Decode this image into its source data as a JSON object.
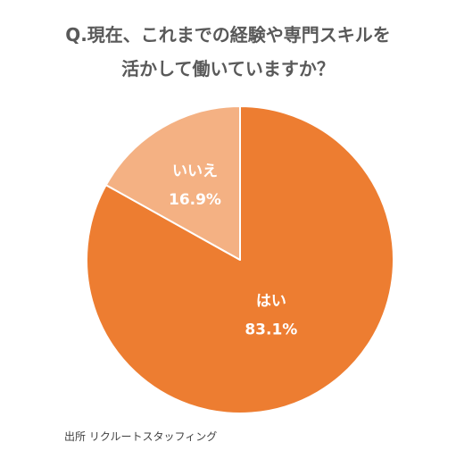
{
  "chart_data": {
    "type": "pie",
    "title_lines": [
      "Q.現在、これまでの経験や専門スキルを",
      "活かして働いていますか？"
    ],
    "slices": [
      {
        "label": "はい",
        "value": 83.1,
        "value_label": "83.1%",
        "color": "#ED7D31"
      },
      {
        "label": "いいえ",
        "value": 16.9,
        "value_label": "16.9%",
        "color": "#F4B183"
      }
    ],
    "start": "12 o'clock",
    "direction": "clockwise",
    "slice_border_color": "#ffffff"
  },
  "source": "出所 リクルートスタッフィング"
}
